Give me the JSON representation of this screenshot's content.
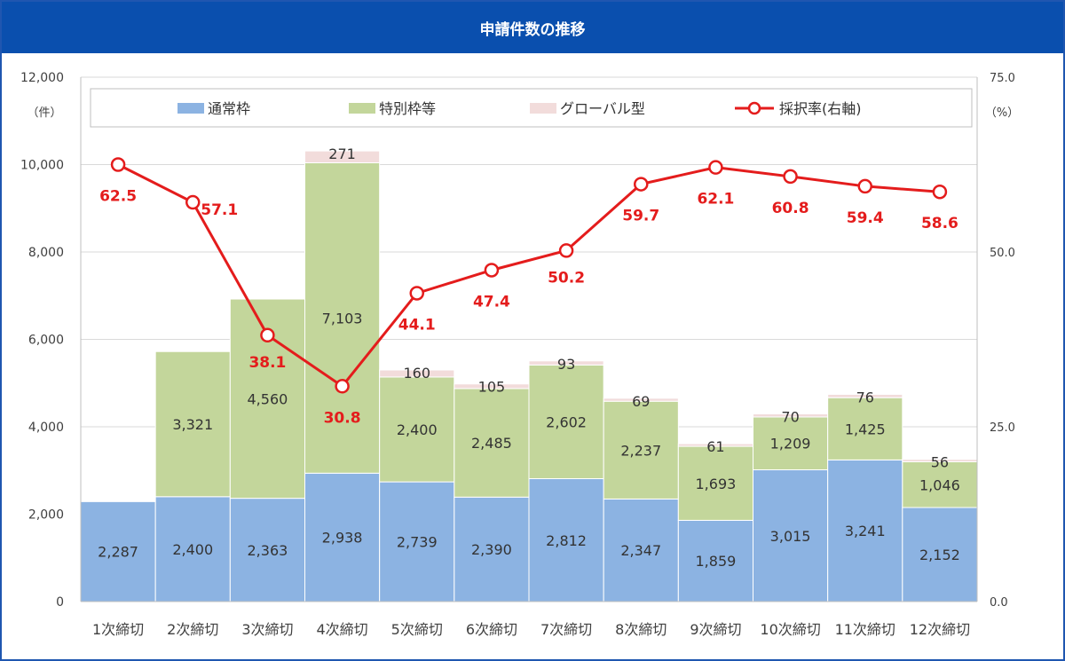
{
  "title": "申請件数の推移",
  "chart_data": {
    "type": "bar",
    "stacked": true,
    "categories": [
      "1次締切",
      "2次締切",
      "3次締切",
      "4次締切",
      "5次締切",
      "6次締切",
      "7次締切",
      "8次締切",
      "9次締切",
      "10次締切",
      "11次締切",
      "12次締切"
    ],
    "series": [
      {
        "name": "通常枠",
        "color": "#8cb3e2",
        "values": [
          2287,
          2400,
          2363,
          2938,
          2739,
          2390,
          2812,
          2347,
          1859,
          3015,
          3241,
          2152
        ],
        "labels": [
          "2,287",
          "2,400",
          "2,363",
          "2,938",
          "2,739",
          "2,390",
          "2,812",
          "2,347",
          "1,859",
          "3,015",
          "3,241",
          "2,152"
        ]
      },
      {
        "name": "特別枠等",
        "color": "#c3d69b",
        "values": [
          0,
          3321,
          4560,
          7103,
          2400,
          2485,
          2602,
          2237,
          1693,
          1209,
          1425,
          1046
        ],
        "labels": [
          "",
          "3,321",
          "4,560",
          "7,103",
          "2,400",
          "2,485",
          "2,602",
          "2,237",
          "1,693",
          "1,209",
          "1,425",
          "1,046"
        ]
      },
      {
        "name": "グローバル型",
        "color": "#f2dcdb",
        "values": [
          0,
          0,
          0,
          271,
          160,
          105,
          93,
          69,
          61,
          70,
          76,
          56
        ],
        "labels": [
          "",
          "",
          "",
          "271",
          "160",
          "105",
          "93",
          "69",
          "61",
          "70",
          "76",
          "56"
        ]
      }
    ],
    "line": {
      "name": "採択率(右軸)",
      "color": "#e41c1c",
      "values": [
        62.5,
        57.1,
        38.1,
        30.8,
        44.1,
        47.4,
        50.2,
        59.7,
        62.1,
        60.8,
        59.4,
        58.6
      ],
      "labels": [
        "62.5",
        "57.1",
        "38.1",
        "30.8",
        "44.1",
        "47.4",
        "50.2",
        "59.7",
        "62.1",
        "60.8",
        "59.4",
        "58.6"
      ]
    },
    "y_left": {
      "unit": "（件）",
      "min": 0,
      "max": 12000,
      "ticks": [
        0,
        2000,
        4000,
        6000,
        8000,
        10000,
        12000
      ],
      "tick_labels": [
        "0",
        "2,000",
        "4,000",
        "6,000",
        "8,000",
        "10,000",
        "12,000"
      ]
    },
    "y_right": {
      "unit": "（%）",
      "min": 0,
      "max": 75,
      "ticks": [
        0,
        25,
        50,
        75
      ],
      "tick_labels": [
        "0.0",
        "25.0",
        "50.0",
        "75.0"
      ]
    },
    "grid": true,
    "legend": "top"
  }
}
